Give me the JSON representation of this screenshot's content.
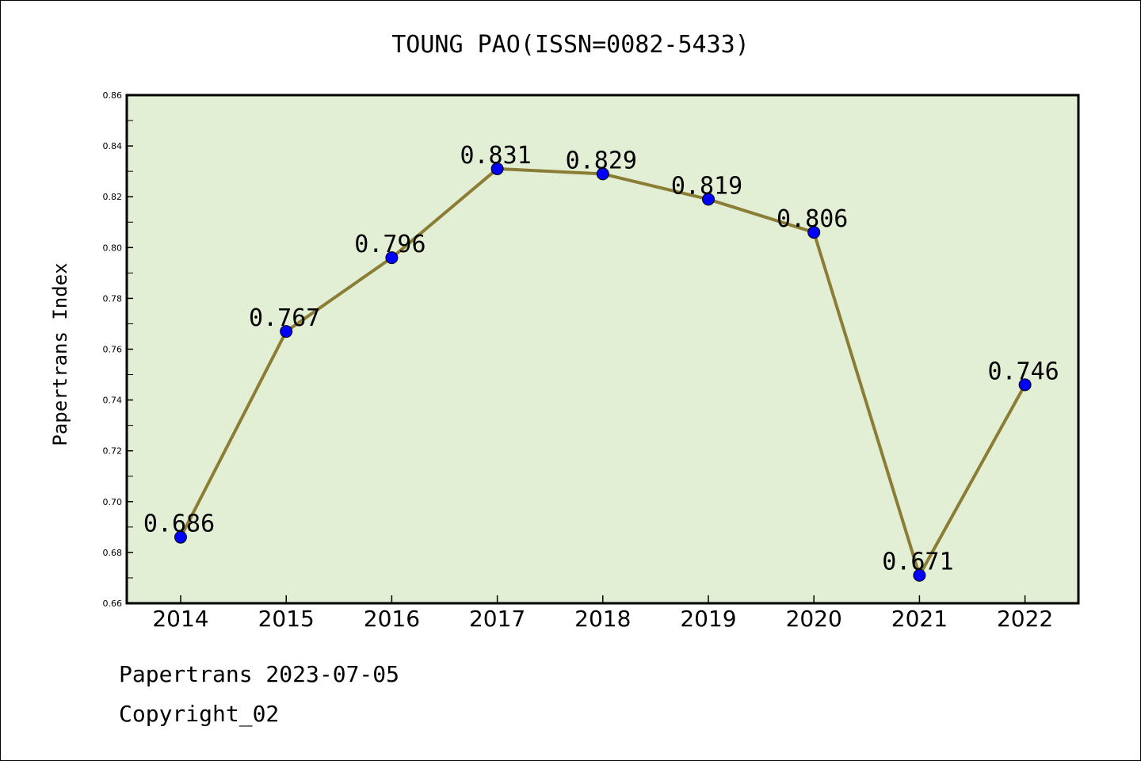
{
  "chart_data": {
    "type": "line",
    "title": "TOUNG PAO(ISSN=0082-5433)",
    "ylabel": "Papertrans Index",
    "xlabel": "",
    "categories": [
      "2014",
      "2015",
      "2016",
      "2017",
      "2018",
      "2019",
      "2020",
      "2021",
      "2022"
    ],
    "values": [
      0.686,
      0.767,
      0.796,
      0.831,
      0.829,
      0.819,
      0.806,
      0.671,
      0.746
    ],
    "data_labels": [
      "0.686",
      "0.767",
      "0.796",
      "0.831",
      "0.829",
      "0.819",
      "0.806",
      "0.671",
      "0.746"
    ],
    "ylim": [
      0.66,
      0.86
    ],
    "y_ticks": [
      "0.66",
      "0.68",
      "0.70",
      "0.72",
      "0.74",
      "0.76",
      "0.78",
      "0.80",
      "0.82",
      "0.84",
      "0.86"
    ],
    "grid": false,
    "legend": "none",
    "colors": {
      "plot_background": "#e2efd5",
      "line": "#8b7d36",
      "marker": "#0000ff"
    }
  },
  "footer": {
    "line1": "Papertrans 2023-07-05",
    "line2": "Copyright_02"
  }
}
